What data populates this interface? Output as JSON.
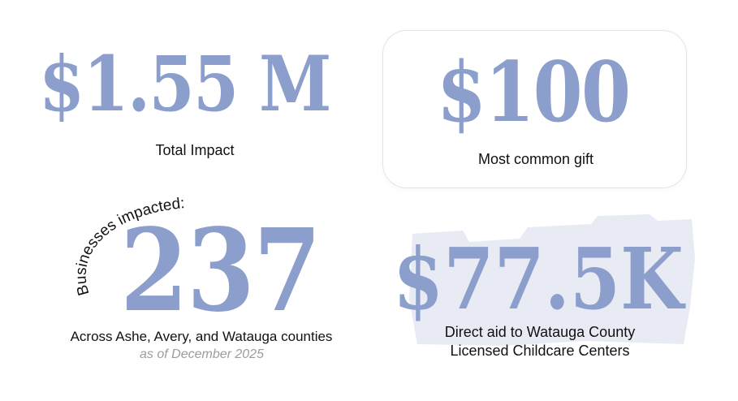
{
  "stats": {
    "total_impact": {
      "value": "$1.55 M",
      "label": "Total Impact"
    },
    "common_gift": {
      "value": "$100",
      "label": "Most common gift"
    },
    "businesses": {
      "arc_label": "Businesses impacted:",
      "value": "237",
      "label": "Across Ashe, Avery, and Watauga counties",
      "note": "as of December 2025"
    },
    "direct_aid": {
      "value": "$77.5K",
      "label_line1": "Direct aid to Watauga County",
      "label_line2": "Licensed Childcare Centers"
    }
  },
  "colors": {
    "accent": "#8c9ecb",
    "highlight": "#e8ebf4",
    "text": "#111111",
    "muted": "#9c9c9c"
  }
}
